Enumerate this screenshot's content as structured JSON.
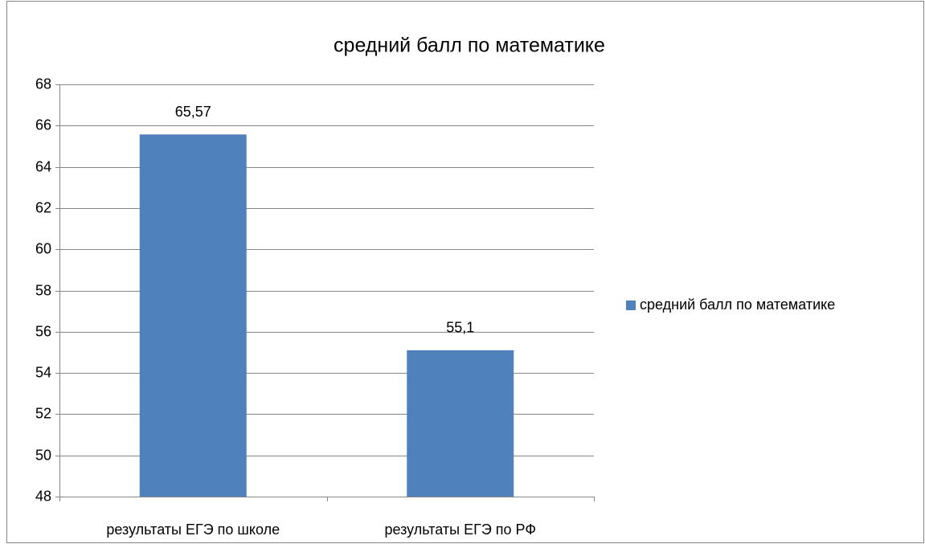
{
  "chart_data": {
    "type": "bar",
    "title": "средний балл по математике",
    "categories": [
      "результаты ЕГЭ по школе",
      "результаты ЕГЭ по РФ"
    ],
    "series": [
      {
        "name": "средний балл по математике",
        "color": "#4f81bd",
        "values": [
          65.57,
          55.1
        ],
        "value_labels": [
          "65,57",
          "55,1"
        ]
      }
    ],
    "ylim": [
      48,
      68
    ],
    "yticks": [
      48,
      50,
      52,
      54,
      56,
      58,
      60,
      62,
      64,
      66,
      68
    ],
    "grid": true,
    "legend": "right"
  }
}
